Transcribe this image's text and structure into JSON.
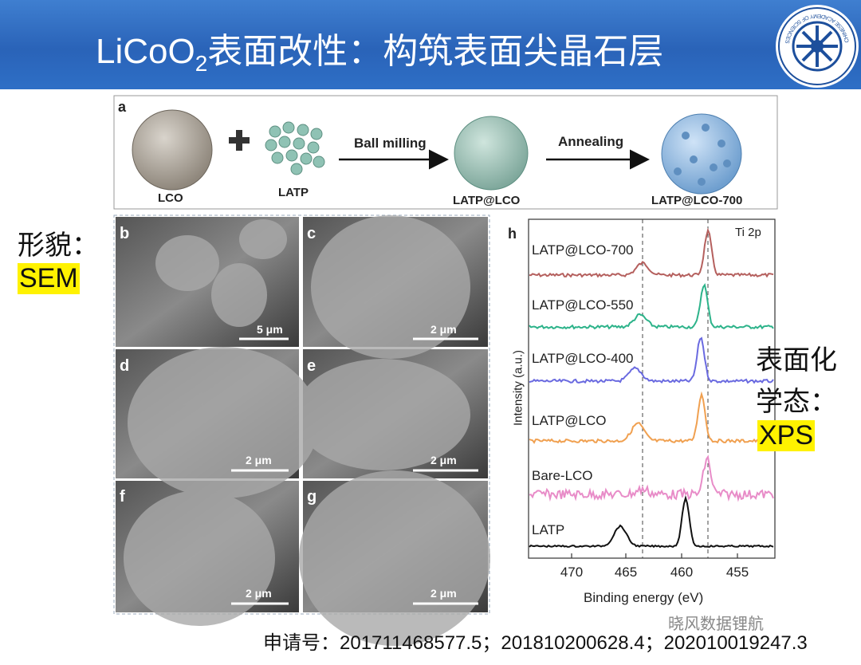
{
  "header": {
    "title_main": "LiCoO",
    "title_subscript": "2",
    "title_rest": "表面改性：构筑表面尖晶石层",
    "logo_text": "CHINESE ACADEMY OF SCIENCES"
  },
  "schematic": {
    "panel": "a",
    "labels": [
      "LCO",
      "LATP",
      "LATP@LCO",
      "LATP@LCO-700"
    ],
    "arrows": [
      "Ball milling",
      "Annealing"
    ]
  },
  "sem": {
    "panels": [
      {
        "letter": "b",
        "scale": "5 μm"
      },
      {
        "letter": "c",
        "scale": "2 μm"
      },
      {
        "letter": "d",
        "scale": "2 μm"
      },
      {
        "letter": "e",
        "scale": "2 μm"
      },
      {
        "letter": "f",
        "scale": "2 μm"
      },
      {
        "letter": "g",
        "scale": "2 μm"
      }
    ]
  },
  "xps": {
    "panel": "h",
    "region": "Ti 2p",
    "samples": [
      "LATP@LCO-700",
      "LATP@LCO-550",
      "LATP@LCO-400",
      "LATP@LCO",
      "Bare-LCO",
      "LATP"
    ],
    "y_label": "Intensity (a.u.)",
    "x_label": "Binding energy (eV)",
    "x_ticks": [
      470,
      465,
      460,
      455
    ]
  },
  "side_labels": {
    "sem": [
      "形貌：",
      "SEM"
    ],
    "xps": [
      "表面化",
      "学态：",
      "XPS"
    ]
  },
  "footer": {
    "text": "申请号：201711468577.5；201810200628.4；202010019247.3",
    "watermark": "晓风数据锂航"
  }
}
